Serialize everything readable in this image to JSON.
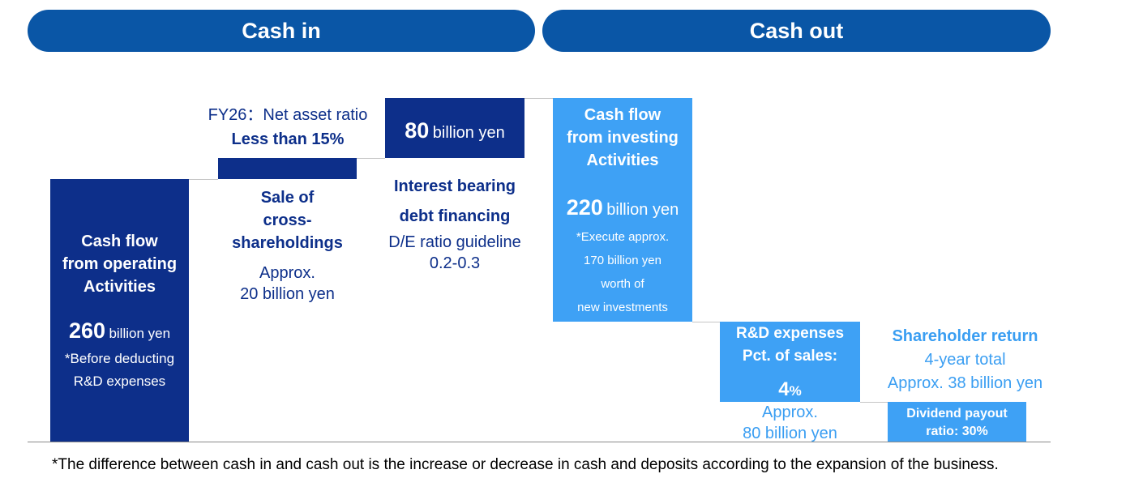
{
  "chart_data": {
    "type": "bar",
    "header_in": "Cash in",
    "header_out": "Cash out",
    "categories": [
      "Cash flow from operating Activities",
      "Sale of cross-shareholdings",
      "Interest bearing debt financing",
      "Cash flow from investing Activities",
      "R&D expenses",
      "Shareholder return"
    ],
    "values": [
      260,
      20,
      80,
      220,
      80,
      38
    ],
    "units": "billion yen"
  },
  "labels": {
    "op": {
      "l1": "Cash flow",
      "l2": "from operating",
      "l3": "Activities",
      "num": "260",
      "unit": "billion yen",
      "n1": "*Before deducting",
      "n2": "R&D expenses"
    },
    "sale": {
      "l1": "Sale of",
      "l2": "cross-",
      "l3": "shareholdings",
      "a1": "Approx.",
      "a2": "20 billion yen",
      "t1": "FY26：Net asset ratio",
      "t2": "Less than 15%"
    },
    "debt": {
      "num": "80",
      "unit": "billion yen",
      "l1": "Interest bearing",
      "l2": "debt financing",
      "g1": "D/E ratio guideline",
      "g2": "0.2-0.3"
    },
    "inv": {
      "l1": "Cash flow",
      "l2": "from investing",
      "l3": "Activities",
      "num": "220",
      "unit": "billion yen",
      "n1": "*Execute approx.",
      "n2": "170 billion yen",
      "n3": "worth of",
      "n4": "new investments"
    },
    "rd": {
      "l1": "R&D expenses",
      "l2": "Pct. of sales:",
      "num": "4",
      "pct": "%",
      "a1": "Approx.",
      "a2": "80 billion yen"
    },
    "sh": {
      "l1": "Shareholder return",
      "l2": "4-year total",
      "l3": "Approx. 38 billion yen",
      "d1": "Dividend payout",
      "d2": "ratio: 30%"
    }
  },
  "footnote": "*The difference between cash in and cash out is the increase or decrease in cash and deposits according to the expansion of the business.",
  "colors": {
    "header": "#0a56a6",
    "cash_in": "#0d2f8a",
    "cash_out": "#3ea1f5"
  }
}
